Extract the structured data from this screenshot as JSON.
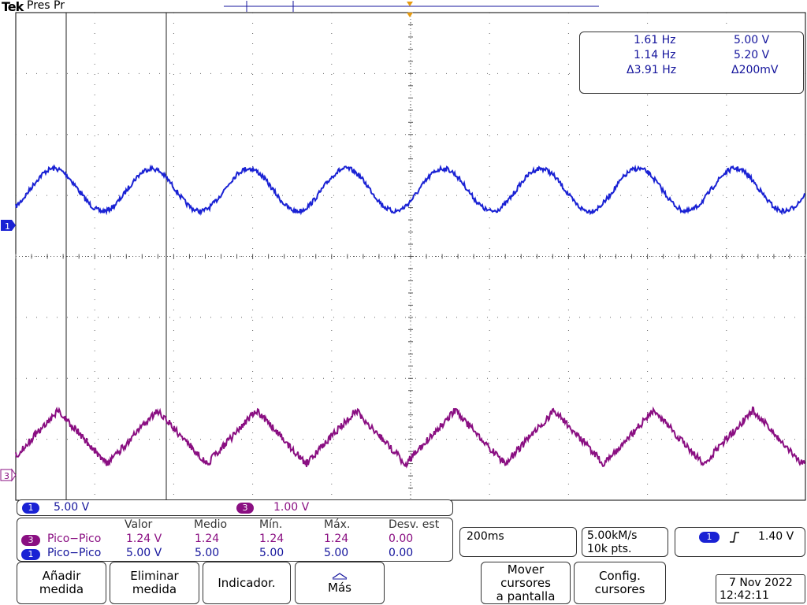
{
  "header": {
    "brand": "Tek",
    "status": "Pres Pr"
  },
  "cursor_readout": {
    "row1": {
      "freq": "1.61 Hz",
      "volt": "5.00 V"
    },
    "row2": {
      "freq": "1.14 Hz",
      "volt": "5.20 V"
    },
    "row3": {
      "freq": "Δ3.91 Hz",
      "volt": "Δ200mV"
    }
  },
  "channels": {
    "ch1": {
      "badge": "1",
      "scale": "5.00 V",
      "color": "#1a22d4",
      "marker": "1"
    },
    "ch3": {
      "badge": "3",
      "scale": "1.00 V",
      "color": "#8a0f82",
      "marker": "3"
    }
  },
  "measurements": {
    "headers": {
      "valor": "Valor",
      "medio": "Medio",
      "min": "Mín.",
      "max": "Máx.",
      "desv": "Desv. est"
    },
    "rows": [
      {
        "badge": "3",
        "name": "Pico−Pico",
        "valor": "1.24 V",
        "medio": "1.24",
        "min": "1.24",
        "max": "1.24",
        "desv": "0.00"
      },
      {
        "badge": "1",
        "name": "Pico−Pico",
        "valor": "5.00 V",
        "medio": "5.00",
        "min": "5.00",
        "max": "5.00",
        "desv": "0.00"
      }
    ]
  },
  "timebase": {
    "scale": "200ms",
    "sample_rate": "5.00kM/s",
    "record_length": "10k pts."
  },
  "trigger": {
    "source": "1",
    "slope_icon": "rising-edge-icon",
    "level": "1.40 V"
  },
  "buttons": {
    "add": "Añadir\nmedida",
    "remove": "Eliminar\nmedida",
    "indicator": "Indicador.",
    "more": "Más",
    "move_cursors": "Mover\ncursores\na pantalla",
    "config_cursors": "Config.\ncursores"
  },
  "datetime": {
    "date": "7 Nov 2022",
    "time": "12:42:11"
  }
}
